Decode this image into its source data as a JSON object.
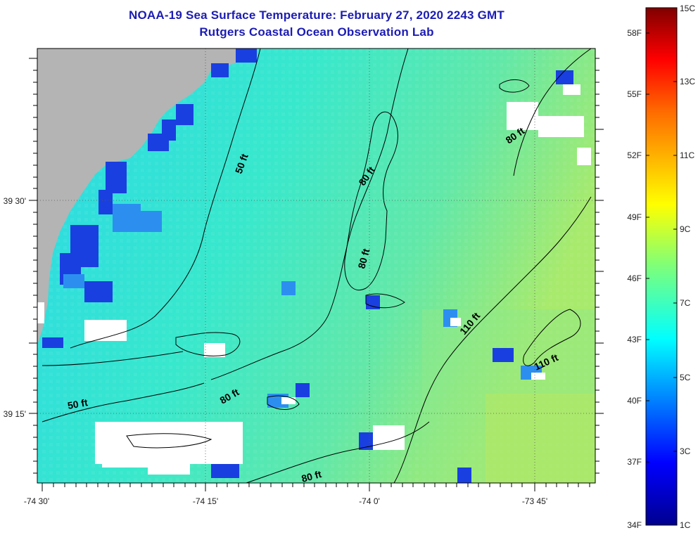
{
  "title": {
    "line1": "NOAA-19 Sea Surface Temperature:  February 27, 2020 2243 GMT",
    "line2": "Rutgers Coastal Ocean Observation Lab"
  },
  "axes": {
    "lon_ticks": [
      "-74 30'",
      "-74 15'",
      "-74 0'",
      "-73 45'"
    ],
    "lat_ticks": [
      "39 30'",
      "39 15'"
    ]
  },
  "contour_labels": [
    "50 ft",
    "80 ft",
    "80 ft",
    "110 ft",
    "80 ft",
    "110 ft",
    "50 ft",
    "80 ft",
    "80 ft"
  ],
  "colorbar": {
    "fahrenheit": [
      "58F",
      "55F",
      "52F",
      "49F",
      "46F",
      "43F",
      "40F",
      "37F",
      "34F"
    ],
    "celsius": [
      "15C",
      "13C",
      "11C",
      "9C",
      "7C",
      "5C",
      "3C",
      "1C"
    ]
  },
  "colors": {
    "land": "#b4b4b4",
    "cloud": "#ffffff",
    "title": "#1c1cb4",
    "sea_main": "#34e6d6",
    "sea_warm": "#8ee88a",
    "sea_cold": "#1a3fe0"
  }
}
